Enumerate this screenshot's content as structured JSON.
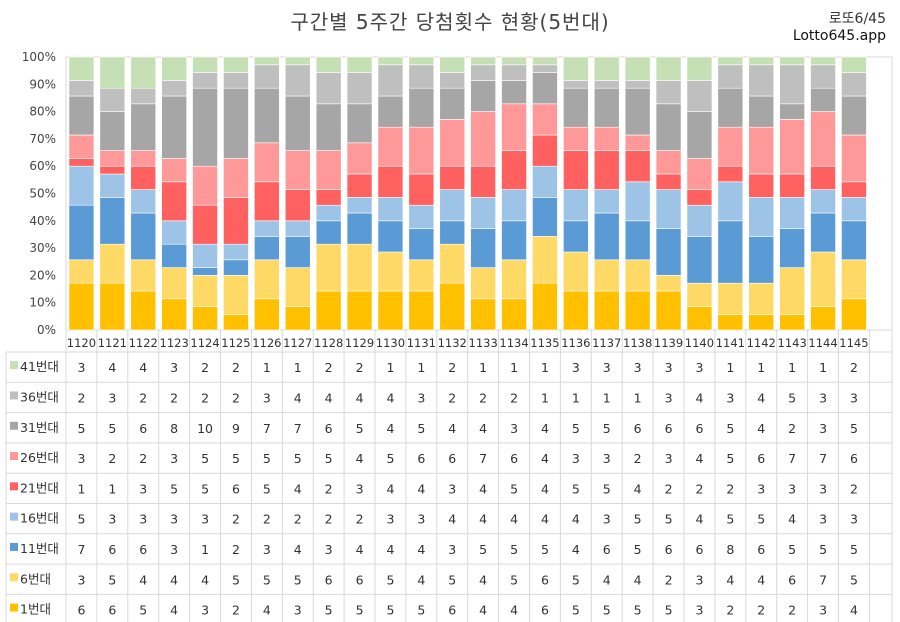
{
  "chart_data": {
    "type": "bar",
    "stacked": "percent",
    "title": "구간별 5주간 당첨횟수 현황(5번대)",
    "brand_line1": "로또6/45",
    "brand_line2": "Lotto645.app",
    "y_ticks": [
      "0%",
      "10%",
      "20%",
      "30%",
      "40%",
      "50%",
      "60%",
      "70%",
      "80%",
      "90%",
      "100%"
    ],
    "ylim": [
      0,
      100
    ],
    "categories": [
      "1120",
      "1121",
      "1122",
      "1123",
      "1124",
      "1125",
      "1126",
      "1127",
      "1128",
      "1129",
      "1130",
      "1131",
      "1132",
      "1133",
      "1134",
      "1135",
      "1136",
      "1137",
      "1138",
      "1139",
      "1140",
      "1141",
      "1142",
      "1143",
      "1144",
      "1145"
    ],
    "series": [
      {
        "name": "1번대",
        "color": "#FFC000",
        "values": [
          6,
          6,
          5,
          4,
          3,
          2,
          4,
          3,
          5,
          5,
          5,
          5,
          6,
          4,
          4,
          6,
          5,
          5,
          5,
          5,
          3,
          2,
          2,
          2,
          3,
          4
        ]
      },
      {
        "name": "6번대",
        "color": "#FFD966",
        "values": [
          3,
          5,
          4,
          4,
          4,
          5,
          5,
          5,
          6,
          6,
          5,
          4,
          5,
          4,
          5,
          6,
          5,
          4,
          4,
          2,
          3,
          4,
          4,
          6,
          7,
          5
        ]
      },
      {
        "name": "11번대",
        "color": "#5B9BD5",
        "values": [
          7,
          6,
          6,
          3,
          1,
          2,
          3,
          4,
          3,
          4,
          4,
          4,
          3,
          5,
          5,
          5,
          4,
          6,
          5,
          6,
          6,
          8,
          6,
          5,
          5,
          5
        ]
      },
      {
        "name": "16번대",
        "color": "#9DC3E6",
        "values": [
          5,
          3,
          3,
          3,
          3,
          2,
          2,
          2,
          2,
          2,
          3,
          3,
          4,
          4,
          4,
          4,
          4,
          3,
          5,
          5,
          4,
          5,
          5,
          4,
          3,
          3
        ]
      },
      {
        "name": "21번대",
        "color": "#FF6161",
        "values": [
          1,
          1,
          3,
          5,
          5,
          6,
          5,
          4,
          2,
          3,
          4,
          4,
          3,
          4,
          5,
          4,
          5,
          5,
          4,
          2,
          2,
          2,
          3,
          3,
          3,
          2
        ]
      },
      {
        "name": "26번대",
        "color": "#FF9999",
        "values": [
          3,
          2,
          2,
          3,
          5,
          5,
          5,
          5,
          5,
          4,
          5,
          6,
          6,
          7,
          6,
          4,
          3,
          3,
          2,
          3,
          4,
          5,
          6,
          7,
          7,
          6
        ]
      },
      {
        "name": "31번대",
        "color": "#A6A6A6",
        "values": [
          5,
          5,
          6,
          8,
          10,
          9,
          7,
          7,
          6,
          5,
          4,
          5,
          4,
          4,
          3,
          4,
          5,
          5,
          6,
          6,
          6,
          5,
          4,
          2,
          3,
          5
        ]
      },
      {
        "name": "36번대",
        "color": "#BFBFBF",
        "values": [
          2,
          3,
          2,
          2,
          2,
          2,
          3,
          4,
          4,
          4,
          4,
          3,
          2,
          2,
          2,
          1,
          1,
          1,
          1,
          3,
          4,
          3,
          4,
          5,
          3,
          3
        ]
      },
      {
        "name": "41번대",
        "color": "#C5E0B4",
        "values": [
          3,
          4,
          4,
          3,
          2,
          2,
          1,
          1,
          2,
          2,
          1,
          1,
          2,
          1,
          1,
          1,
          3,
          3,
          3,
          3,
          3,
          1,
          1,
          1,
          1,
          2
        ]
      }
    ]
  }
}
